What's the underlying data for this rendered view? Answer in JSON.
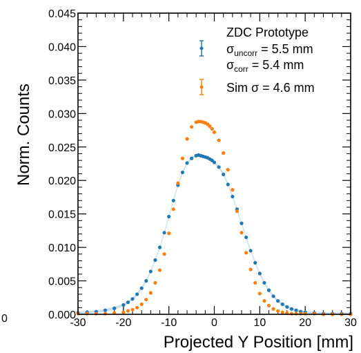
{
  "chart_data": {
    "type": "scatter",
    "xlabel": "Projected Y Position [mm]",
    "ylabel": "Norm. Counts",
    "xlim": [
      -30,
      30
    ],
    "ylim": [
      0,
      0.045
    ],
    "x_ticks": [
      "-30",
      "-20",
      "-10",
      "0",
      "10",
      "20",
      "30"
    ],
    "y_ticks": [
      "0.000",
      "0.005",
      "0.010",
      "0.015",
      "0.020",
      "0.025",
      "0.030",
      "0.035",
      "0.040",
      "0.045"
    ],
    "stray_label": "0",
    "legend": {
      "title": "ZDC Prototype",
      "entries": [
        {
          "sigma": "σ",
          "sub1": "uncorr",
          "text1": " = 5.5 mm",
          "sub2": "corr",
          "text2": " = 5.4 mm",
          "color": "#1f77b4"
        },
        {
          "text": "Sim σ = 4.6 mm",
          "color": "#ff7f0e"
        }
      ]
    },
    "series": [
      {
        "color": "#1f77b4",
        "x": [
          -30,
          -28,
          -26,
          -24,
          -22,
          -20,
          -19,
          -18,
          -17,
          -16,
          -15,
          -14,
          -13,
          -12,
          -11,
          -10,
          -9,
          -8,
          -7,
          -6,
          -5,
          -4,
          -3.5,
          -3,
          -2.5,
          -2,
          -1.5,
          -1,
          -0.5,
          0,
          1,
          2,
          3,
          4,
          5,
          6,
          7,
          8,
          9,
          10,
          11,
          12,
          13,
          14,
          15,
          16,
          17,
          18,
          19,
          20,
          22,
          24,
          26,
          28,
          30
        ],
        "y": [
          0.0002,
          0.0003,
          0.0004,
          0.0006,
          0.0009,
          0.0014,
          0.0018,
          0.0023,
          0.003,
          0.0039,
          0.005,
          0.0064,
          0.0081,
          0.01,
          0.0122,
          0.0146,
          0.017,
          0.0193,
          0.0212,
          0.0226,
          0.0233,
          0.0237,
          0.0238,
          0.0237,
          0.0236,
          0.0235,
          0.0234,
          0.0232,
          0.023,
          0.0227,
          0.022,
          0.0209,
          0.0194,
          0.0176,
          0.0157,
          0.0136,
          0.0115,
          0.0095,
          0.0077,
          0.0061,
          0.0047,
          0.0036,
          0.0027,
          0.002,
          0.0015,
          0.0011,
          0.0008,
          0.0006,
          0.0004,
          0.0003,
          0.0002,
          0.0001,
          0.0001,
          0.0001,
          0.0001
        ]
      },
      {
        "color": "#ff7f0e",
        "x": [
          -30,
          -28,
          -26,
          -24,
          -22,
          -20,
          -19,
          -18,
          -17,
          -16,
          -15,
          -14,
          -13,
          -12,
          -11,
          -10,
          -9,
          -8,
          -7,
          -6,
          -5,
          -4,
          -3.5,
          -3,
          -2.5,
          -2,
          -1.5,
          -1,
          -0.5,
          0,
          1,
          2,
          3,
          4,
          5,
          6,
          7,
          8,
          9,
          10,
          11,
          12,
          13,
          14,
          15,
          16,
          17,
          18,
          19,
          20,
          22,
          24,
          26,
          28,
          30
        ],
        "y": [
          0.0001,
          0.0001,
          0.0001,
          0.0001,
          0.0002,
          0.0003,
          0.0005,
          0.0007,
          0.001,
          0.0015,
          0.0022,
          0.0032,
          0.0047,
          0.0066,
          0.009,
          0.0121,
          0.0157,
          0.0196,
          0.0233,
          0.0262,
          0.028,
          0.0287,
          0.0288,
          0.0288,
          0.0287,
          0.0286,
          0.0284,
          0.0281,
          0.0277,
          0.0272,
          0.026,
          0.0241,
          0.0216,
          0.0186,
          0.0154,
          0.0122,
          0.0092,
          0.0067,
          0.0047,
          0.0031,
          0.002,
          0.0013,
          0.0008,
          0.0005,
          0.0003,
          0.0002,
          0.0001,
          0.0001,
          0.0001,
          0.0001,
          0.0001,
          0.0,
          0.0,
          0.0,
          0.0
        ]
      }
    ]
  }
}
